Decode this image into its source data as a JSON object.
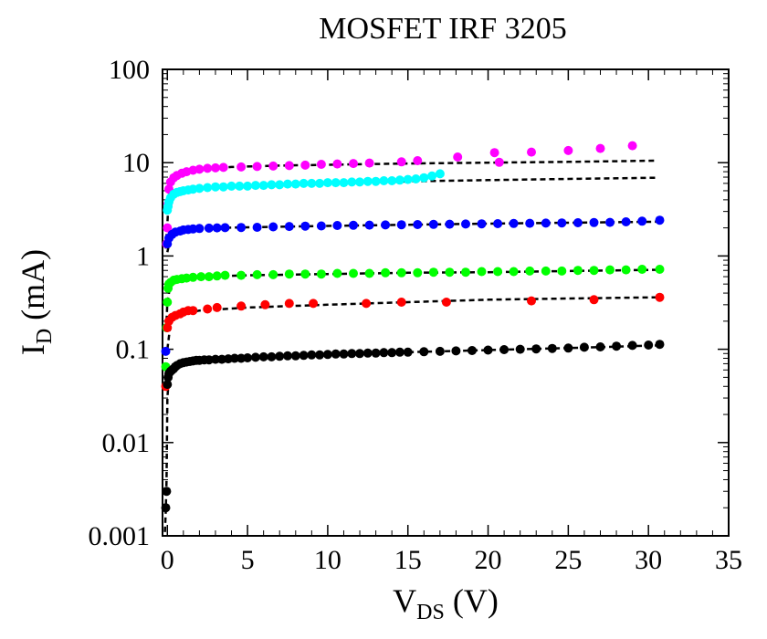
{
  "chart_data": {
    "type": "scatter",
    "title": "MOSFET IRF 3205",
    "xlabel": {
      "main": "V",
      "sub": "DS",
      "suffix": " (V)"
    },
    "ylabel": {
      "main": "I",
      "sub": "D",
      "suffix": " (mA)"
    },
    "xlim": [
      -0.3,
      35
    ],
    "ylim": [
      0.001,
      100
    ],
    "yscale": "log",
    "x_ticks": [
      0,
      5,
      10,
      15,
      20,
      25,
      30,
      35
    ],
    "x_tick_labels": [
      "0",
      "5",
      "10",
      "15",
      "20",
      "25",
      "30",
      "35"
    ],
    "y_ticks": [
      0.001,
      0.01,
      0.1,
      1,
      10,
      100
    ],
    "y_tick_labels": [
      "0.001",
      "0.01",
      "0.1",
      "1",
      "10",
      "100"
    ],
    "grid": false,
    "legend": "none",
    "series": [
      {
        "color": "#ff00ff",
        "points": [
          [
            -0.05,
            1.35
          ],
          [
            0.0,
            2.0
          ],
          [
            0.05,
            3.6
          ],
          [
            0.1,
            5.2
          ],
          [
            0.2,
            6.2
          ],
          [
            0.4,
            6.9
          ],
          [
            0.6,
            7.3
          ],
          [
            0.9,
            7.7
          ],
          [
            1.2,
            8.0
          ],
          [
            1.6,
            8.3
          ],
          [
            2.0,
            8.5
          ],
          [
            2.5,
            8.7
          ],
          [
            3.0,
            8.8
          ],
          [
            3.5,
            8.9
          ],
          [
            4.6,
            9.0
          ],
          [
            5.6,
            9.1
          ],
          [
            6.6,
            9.2
          ],
          [
            7.6,
            9.3
          ],
          [
            8.6,
            9.4
          ],
          [
            9.6,
            9.6
          ],
          [
            10.6,
            9.7
          ],
          [
            11.6,
            9.8
          ],
          [
            12.6,
            9.9
          ],
          [
            14.6,
            10.2
          ],
          [
            15.6,
            10.5
          ],
          [
            18.1,
            11.5
          ],
          [
            20.4,
            12.8
          ],
          [
            20.7,
            10.1
          ],
          [
            22.7,
            13.0
          ],
          [
            25.0,
            13.5
          ],
          [
            27.0,
            14.2
          ],
          [
            29.0,
            15.2
          ]
        ],
        "fit": [
          [
            -0.1,
            1.2
          ],
          [
            0.0,
            2.2
          ],
          [
            0.1,
            4.6
          ],
          [
            0.3,
            6.3
          ],
          [
            0.6,
            7.2
          ],
          [
            1.0,
            7.8
          ],
          [
            2.0,
            8.5
          ],
          [
            4.0,
            9.0
          ],
          [
            7.0,
            9.3
          ],
          [
            10.0,
            9.5
          ],
          [
            15.0,
            9.8
          ],
          [
            20.0,
            10.0
          ],
          [
            25.0,
            10.2
          ],
          [
            30.5,
            10.5
          ]
        ]
      },
      {
        "color": "#00ffff",
        "points": [
          [
            0.0,
            3.1
          ],
          [
            0.05,
            3.4
          ],
          [
            0.1,
            3.8
          ],
          [
            0.2,
            4.2
          ],
          [
            0.4,
            4.6
          ],
          [
            0.6,
            4.8
          ],
          [
            0.8,
            4.9
          ],
          [
            1.0,
            5.0
          ],
          [
            1.3,
            5.1
          ],
          [
            1.6,
            5.2
          ],
          [
            2.0,
            5.3
          ],
          [
            2.5,
            5.4
          ],
          [
            3.0,
            5.5
          ],
          [
            3.5,
            5.5
          ],
          [
            4.0,
            5.6
          ],
          [
            4.5,
            5.6
          ],
          [
            5.0,
            5.6
          ],
          [
            5.5,
            5.7
          ],
          [
            6.0,
            5.7
          ],
          [
            6.5,
            5.8
          ],
          [
            7.0,
            5.8
          ],
          [
            7.5,
            5.9
          ],
          [
            8.0,
            5.9
          ],
          [
            8.5,
            6.0
          ],
          [
            9.0,
            6.0
          ],
          [
            9.5,
            6.0
          ],
          [
            10.0,
            6.1
          ],
          [
            10.5,
            6.1
          ],
          [
            11.0,
            6.1
          ],
          [
            11.5,
            6.2
          ],
          [
            12.0,
            6.2
          ],
          [
            12.5,
            6.3
          ],
          [
            13.0,
            6.3
          ],
          [
            13.5,
            6.4
          ],
          [
            14.0,
            6.4
          ],
          [
            14.5,
            6.5
          ],
          [
            15.0,
            6.6
          ],
          [
            15.5,
            6.7
          ],
          [
            16.0,
            6.9
          ],
          [
            16.5,
            7.2
          ],
          [
            17.0,
            7.6
          ]
        ],
        "fit": [
          [
            0.0,
            3.2
          ],
          [
            0.2,
            4.2
          ],
          [
            0.5,
            4.7
          ],
          [
            1.0,
            5.0
          ],
          [
            2.0,
            5.3
          ],
          [
            4.0,
            5.6
          ],
          [
            7.0,
            5.8
          ],
          [
            10.0,
            6.0
          ],
          [
            15.0,
            6.3
          ],
          [
            20.0,
            6.5
          ],
          [
            25.0,
            6.7
          ],
          [
            30.5,
            6.9
          ]
        ]
      },
      {
        "color": "#0000ff",
        "points": [
          [
            -0.1,
            0.095
          ],
          [
            0.0,
            1.35
          ],
          [
            0.1,
            1.55
          ],
          [
            0.3,
            1.7
          ],
          [
            0.5,
            1.8
          ],
          [
            0.8,
            1.85
          ],
          [
            1.0,
            1.9
          ],
          [
            1.3,
            1.92
          ],
          [
            1.6,
            1.95
          ],
          [
            2.0,
            1.97
          ],
          [
            2.6,
            1.99
          ],
          [
            3.1,
            2.0
          ],
          [
            3.6,
            2.01
          ],
          [
            4.6,
            2.02
          ],
          [
            5.6,
            2.03
          ],
          [
            6.6,
            2.05
          ],
          [
            7.6,
            2.07
          ],
          [
            8.6,
            2.09
          ],
          [
            9.6,
            2.1
          ],
          [
            10.6,
            2.12
          ],
          [
            11.6,
            2.13
          ],
          [
            12.6,
            2.14
          ],
          [
            13.6,
            2.15
          ],
          [
            14.6,
            2.16
          ],
          [
            15.6,
            2.17
          ],
          [
            16.6,
            2.18
          ],
          [
            17.6,
            2.19
          ],
          [
            18.6,
            2.2
          ],
          [
            19.6,
            2.21
          ],
          [
            20.6,
            2.22
          ],
          [
            21.6,
            2.23
          ],
          [
            22.6,
            2.24
          ],
          [
            23.6,
            2.25
          ],
          [
            24.6,
            2.26
          ],
          [
            25.6,
            2.27
          ],
          [
            26.6,
            2.28
          ],
          [
            27.6,
            2.29
          ],
          [
            28.6,
            2.32
          ],
          [
            29.6,
            2.36
          ],
          [
            30.7,
            2.42
          ]
        ],
        "fit": [
          [
            0.0,
            1.1
          ],
          [
            0.2,
            1.6
          ],
          [
            0.5,
            1.8
          ],
          [
            1.0,
            1.9
          ],
          [
            2.0,
            1.98
          ],
          [
            5.0,
            2.03
          ],
          [
            10.0,
            2.1
          ],
          [
            15.0,
            2.16
          ],
          [
            20.0,
            2.22
          ],
          [
            25.0,
            2.27
          ],
          [
            30.5,
            2.33
          ]
        ]
      },
      {
        "color": "#00ff00",
        "points": [
          [
            -0.1,
            0.065
          ],
          [
            -0.05,
            0.17
          ],
          [
            0.0,
            0.32
          ],
          [
            0.05,
            0.45
          ],
          [
            0.1,
            0.5
          ],
          [
            0.2,
            0.52
          ],
          [
            0.4,
            0.55
          ],
          [
            0.6,
            0.56
          ],
          [
            0.9,
            0.57
          ],
          [
            1.2,
            0.58
          ],
          [
            1.6,
            0.59
          ],
          [
            2.1,
            0.6
          ],
          [
            2.6,
            0.6
          ],
          [
            3.1,
            0.61
          ],
          [
            3.6,
            0.62
          ],
          [
            4.6,
            0.62
          ],
          [
            5.6,
            0.63
          ],
          [
            6.6,
            0.63
          ],
          [
            7.6,
            0.64
          ],
          [
            8.6,
            0.64
          ],
          [
            9.6,
            0.64
          ],
          [
            10.6,
            0.65
          ],
          [
            11.6,
            0.65
          ],
          [
            12.6,
            0.65
          ],
          [
            13.6,
            0.66
          ],
          [
            14.6,
            0.66
          ],
          [
            15.6,
            0.66
          ],
          [
            16.6,
            0.67
          ],
          [
            17.6,
            0.67
          ],
          [
            18.6,
            0.67
          ],
          [
            19.6,
            0.68
          ],
          [
            20.6,
            0.68
          ],
          [
            21.6,
            0.68
          ],
          [
            22.6,
            0.69
          ],
          [
            23.6,
            0.69
          ],
          [
            24.6,
            0.69
          ],
          [
            25.6,
            0.7
          ],
          [
            26.6,
            0.7
          ],
          [
            27.6,
            0.71
          ],
          [
            28.6,
            0.71
          ],
          [
            29.6,
            0.72
          ],
          [
            30.7,
            0.72
          ]
        ],
        "fit": [
          [
            -0.05,
            0.2
          ],
          [
            0.0,
            0.32
          ],
          [
            0.2,
            0.5
          ],
          [
            0.5,
            0.55
          ],
          [
            1.0,
            0.57
          ],
          [
            2.0,
            0.6
          ],
          [
            5.0,
            0.62
          ],
          [
            10.0,
            0.64
          ],
          [
            15.0,
            0.66
          ],
          [
            20.0,
            0.67
          ],
          [
            25.0,
            0.69
          ],
          [
            30.5,
            0.71
          ]
        ]
      },
      {
        "color": "#ff0000",
        "points": [
          [
            -0.1,
            0.04
          ],
          [
            0.0,
            0.17
          ],
          [
            0.1,
            0.2
          ],
          [
            0.3,
            0.22
          ],
          [
            0.5,
            0.23
          ],
          [
            0.8,
            0.24
          ],
          [
            1.0,
            0.25
          ],
          [
            1.3,
            0.26
          ],
          [
            1.6,
            0.26
          ],
          [
            2.5,
            0.27
          ],
          [
            3.1,
            0.28
          ],
          [
            4.6,
            0.29
          ],
          [
            6.1,
            0.3
          ],
          [
            7.6,
            0.31
          ],
          [
            9.1,
            0.31
          ],
          [
            12.4,
            0.31
          ],
          [
            14.6,
            0.32
          ],
          [
            17.4,
            0.32
          ],
          [
            22.7,
            0.33
          ],
          [
            26.6,
            0.34
          ],
          [
            30.7,
            0.36
          ]
        ],
        "fit": [
          [
            0.0,
            0.1
          ],
          [
            0.2,
            0.19
          ],
          [
            0.5,
            0.22
          ],
          [
            1.0,
            0.24
          ],
          [
            2.0,
            0.26
          ],
          [
            5.0,
            0.28
          ],
          [
            10.0,
            0.3
          ],
          [
            15.0,
            0.32
          ],
          [
            20.0,
            0.34
          ],
          [
            25.0,
            0.35
          ],
          [
            30.5,
            0.36
          ]
        ]
      },
      {
        "color": "#000000",
        "points": [
          [
            -0.1,
            0.002
          ],
          [
            -0.05,
            0.003
          ],
          [
            0.0,
            0.042
          ],
          [
            0.05,
            0.05
          ],
          [
            0.1,
            0.055
          ],
          [
            0.2,
            0.058
          ],
          [
            0.3,
            0.06
          ],
          [
            0.4,
            0.062
          ],
          [
            0.5,
            0.065
          ],
          [
            0.6,
            0.067
          ],
          [
            0.8,
            0.07
          ],
          [
            1.0,
            0.072
          ],
          [
            1.2,
            0.073
          ],
          [
            1.4,
            0.074
          ],
          [
            1.6,
            0.075
          ],
          [
            1.8,
            0.076
          ],
          [
            2.0,
            0.076
          ],
          [
            2.3,
            0.077
          ],
          [
            2.6,
            0.077
          ],
          [
            3.0,
            0.078
          ],
          [
            3.4,
            0.078
          ],
          [
            3.8,
            0.079
          ],
          [
            4.2,
            0.08
          ],
          [
            4.6,
            0.08
          ],
          [
            5.0,
            0.081
          ],
          [
            5.5,
            0.082
          ],
          [
            6.0,
            0.083
          ],
          [
            6.5,
            0.083
          ],
          [
            7.0,
            0.084
          ],
          [
            7.5,
            0.085
          ],
          [
            8.0,
            0.085
          ],
          [
            8.5,
            0.086
          ],
          [
            9.0,
            0.087
          ],
          [
            9.5,
            0.087
          ],
          [
            10.0,
            0.088
          ],
          [
            10.5,
            0.089
          ],
          [
            11.0,
            0.089
          ],
          [
            11.5,
            0.09
          ],
          [
            12.0,
            0.09
          ],
          [
            12.5,
            0.091
          ],
          [
            13.0,
            0.091
          ],
          [
            13.5,
            0.092
          ],
          [
            14.0,
            0.092
          ],
          [
            14.5,
            0.093
          ],
          [
            15.0,
            0.093
          ],
          [
            16.0,
            0.094
          ],
          [
            17.0,
            0.095
          ],
          [
            18.0,
            0.096
          ],
          [
            19.0,
            0.097
          ],
          [
            20.0,
            0.098
          ],
          [
            21.0,
            0.099
          ],
          [
            22.0,
            0.1
          ],
          [
            23.0,
            0.101
          ],
          [
            24.0,
            0.102
          ],
          [
            25.0,
            0.103
          ],
          [
            26.0,
            0.105
          ],
          [
            27.0,
            0.106
          ],
          [
            28.0,
            0.108
          ],
          [
            29.0,
            0.11
          ],
          [
            30.0,
            0.111
          ],
          [
            30.7,
            0.113
          ]
        ],
        "fit": [
          [
            -0.15,
            0.0011
          ],
          [
            -0.1,
            0.0018
          ],
          [
            -0.05,
            0.004
          ],
          [
            0.0,
            0.03
          ],
          [
            0.1,
            0.05
          ],
          [
            0.3,
            0.06
          ],
          [
            0.6,
            0.067
          ],
          [
            1.0,
            0.072
          ],
          [
            2.0,
            0.077
          ],
          [
            5.0,
            0.082
          ],
          [
            10.0,
            0.088
          ],
          [
            15.0,
            0.093
          ],
          [
            20.0,
            0.098
          ],
          [
            25.0,
            0.103
          ],
          [
            30.5,
            0.11
          ]
        ]
      }
    ]
  }
}
